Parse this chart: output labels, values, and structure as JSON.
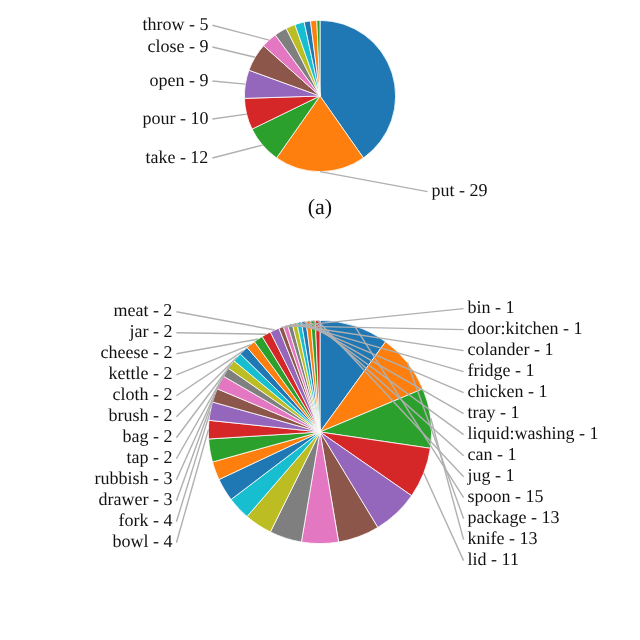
{
  "chart_data": [
    {
      "type": "pie",
      "annotations": [
        "(a)"
      ],
      "categories": [
        null,
        "put",
        "take",
        "pour",
        "open",
        "close",
        "throw",
        null,
        null,
        null,
        null,
        null,
        null
      ],
      "values": [
        60,
        29,
        12,
        10,
        9,
        9,
        5,
        4,
        3,
        3,
        2,
        2,
        1
      ],
      "value_labels": [
        null,
        "29",
        "12",
        "10",
        "9",
        "9",
        "5",
        null,
        null,
        null,
        null,
        null,
        null
      ],
      "colors": [
        "#1f77b4",
        "#ff7f0e",
        "#2ca02c",
        "#d62728",
        "#9467bd",
        "#8c564b",
        "#e377c2",
        "#7f7f7f",
        "#bcbd22",
        "#17becf",
        "#1f77b4",
        "#ff7f0e",
        "#2ca02c"
      ]
    },
    {
      "type": "pie",
      "categories": [
        "spoon",
        "package",
        "knife",
        "lid",
        null,
        null,
        null,
        null,
        null,
        null,
        null,
        null,
        null,
        "bowl",
        "fork",
        "drawer",
        "rubbish",
        "tap",
        "bag",
        "brush",
        "cloth",
        "kettle",
        "cheese",
        "jar",
        "meat",
        "bin",
        "door:kitchen",
        "colander",
        "fridge",
        "chicken",
        "tray",
        "liquid:washing",
        "can",
        "jug"
      ],
      "values": [
        15,
        13,
        13,
        11,
        10,
        9,
        8,
        7,
        6,
        5,
        5,
        4,
        5,
        4,
        4,
        3,
        3,
        2,
        2,
        2,
        2,
        2,
        2,
        2,
        2,
        1,
        1,
        1,
        1,
        1,
        1,
        1,
        1,
        1
      ],
      "value_labels": [
        "15",
        "13",
        "13",
        "11",
        null,
        null,
        null,
        null,
        null,
        null,
        null,
        null,
        null,
        "4",
        "4",
        "3",
        "3",
        "2",
        "2",
        "2",
        "2",
        "2",
        "2",
        "2",
        "2",
        "1",
        "1",
        "1",
        "1",
        "1",
        "1",
        "1",
        "1",
        "1"
      ],
      "colors": [
        "#1f77b4",
        "#ff7f0e",
        "#2ca02c",
        "#d62728",
        "#9467bd",
        "#8c564b",
        "#e377c2",
        "#7f7f7f",
        "#bcbd22",
        "#17becf",
        "#1f77b4",
        "#ff7f0e",
        "#2ca02c",
        "#d62728",
        "#9467bd",
        "#8c564b",
        "#e377c2",
        "#7f7f7f",
        "#bcbd22",
        "#17becf",
        "#1f77b4",
        "#ff7f0e",
        "#2ca02c",
        "#d62728",
        "#9467bd",
        "#8c564b",
        "#e377c2",
        "#7f7f7f",
        "#bcbd22",
        "#17becf",
        "#1f77b4",
        "#ff7f0e",
        "#2ca02c",
        "#d62728"
      ]
    }
  ]
}
